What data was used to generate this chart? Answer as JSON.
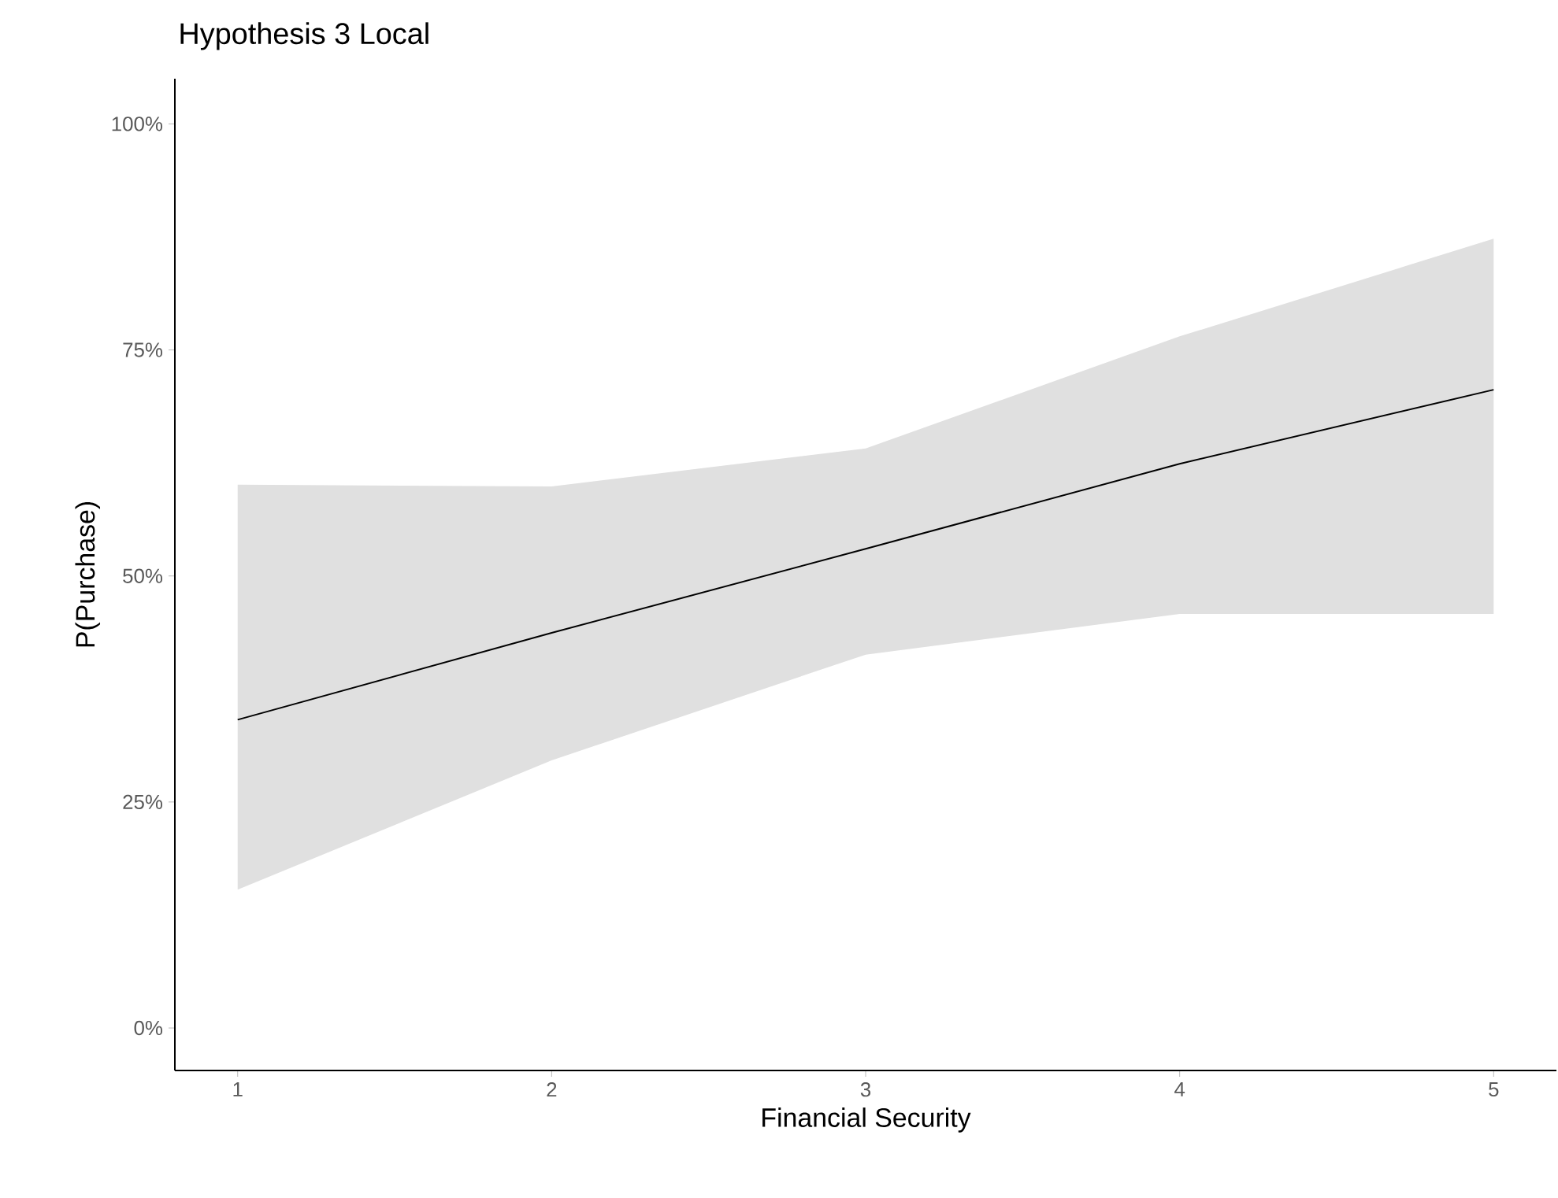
{
  "chart_data": {
    "type": "line",
    "title": "Hypothesis 3 Local",
    "xlabel": "Financial Security",
    "ylabel": "P(Purchase)",
    "x": [
      1,
      2,
      3,
      4,
      5
    ],
    "series": [
      {
        "color": "#000000",
        "values": [
          34.1,
          43.7,
          53.0,
          62.4,
          70.6
        ],
        "lower": [
          15.3,
          29.6,
          41.3,
          45.8,
          45.8
        ],
        "upper": [
          60.1,
          59.9,
          64.1,
          76.5,
          87.3
        ]
      }
    ],
    "xlim": [
      0.8,
      5.2
    ],
    "ylim": [
      -4.7,
      105
    ],
    "xticks": [
      1,
      2,
      3,
      4,
      5
    ],
    "yticks": [
      {
        "value": 0,
        "label": "0%"
      },
      {
        "value": 25,
        "label": "25%"
      },
      {
        "value": 50,
        "label": "50%"
      },
      {
        "value": 75,
        "label": "75%"
      },
      {
        "value": 100,
        "label": "100%"
      }
    ],
    "grid": false,
    "marker": "none",
    "line_style": "solid"
  }
}
